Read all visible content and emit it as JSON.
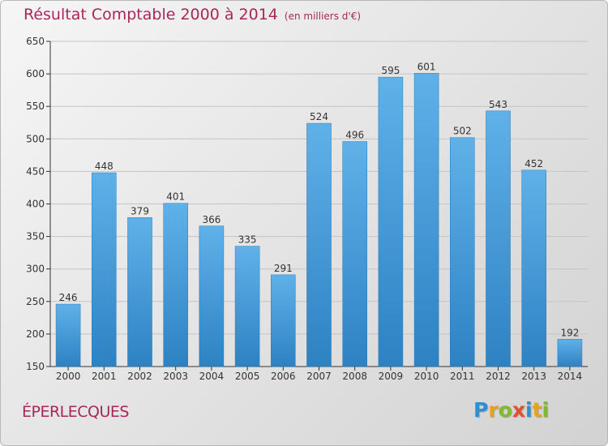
{
  "chart_data": {
    "type": "bar",
    "title": "Résultat Comptable 2000 à 2014",
    "subtitle": "(en milliers d'€)",
    "categories": [
      "2000",
      "2001",
      "2002",
      "2003",
      "2004",
      "2005",
      "2006",
      "2007",
      "2008",
      "2009",
      "2010",
      "2011",
      "2012",
      "2013",
      "2014"
    ],
    "values": [
      246,
      448,
      379,
      401,
      366,
      335,
      291,
      524,
      496,
      595,
      601,
      502,
      543,
      452,
      192
    ],
    "ylim": [
      150,
      650
    ],
    "yticks": [
      150,
      200,
      250,
      300,
      350,
      400,
      450,
      500,
      550,
      600,
      650
    ],
    "grid": true,
    "bar_color": "#4a9fd8"
  },
  "footer": {
    "city": "ÉPERLECQUES",
    "brand_letters": [
      {
        "ch": "P",
        "color": "#2f8fd0"
      },
      {
        "ch": "r",
        "color": "#e9a21a"
      },
      {
        "ch": "o",
        "color": "#7fba2f"
      },
      {
        "ch": "x",
        "color": "#e2512a"
      },
      {
        "ch": "i",
        "color": "#2f8fd0"
      },
      {
        "ch": "t",
        "color": "#e9a21a"
      },
      {
        "ch": "i",
        "color": "#7fba2f"
      }
    ]
  },
  "colors": {
    "title": "#a8275a"
  }
}
